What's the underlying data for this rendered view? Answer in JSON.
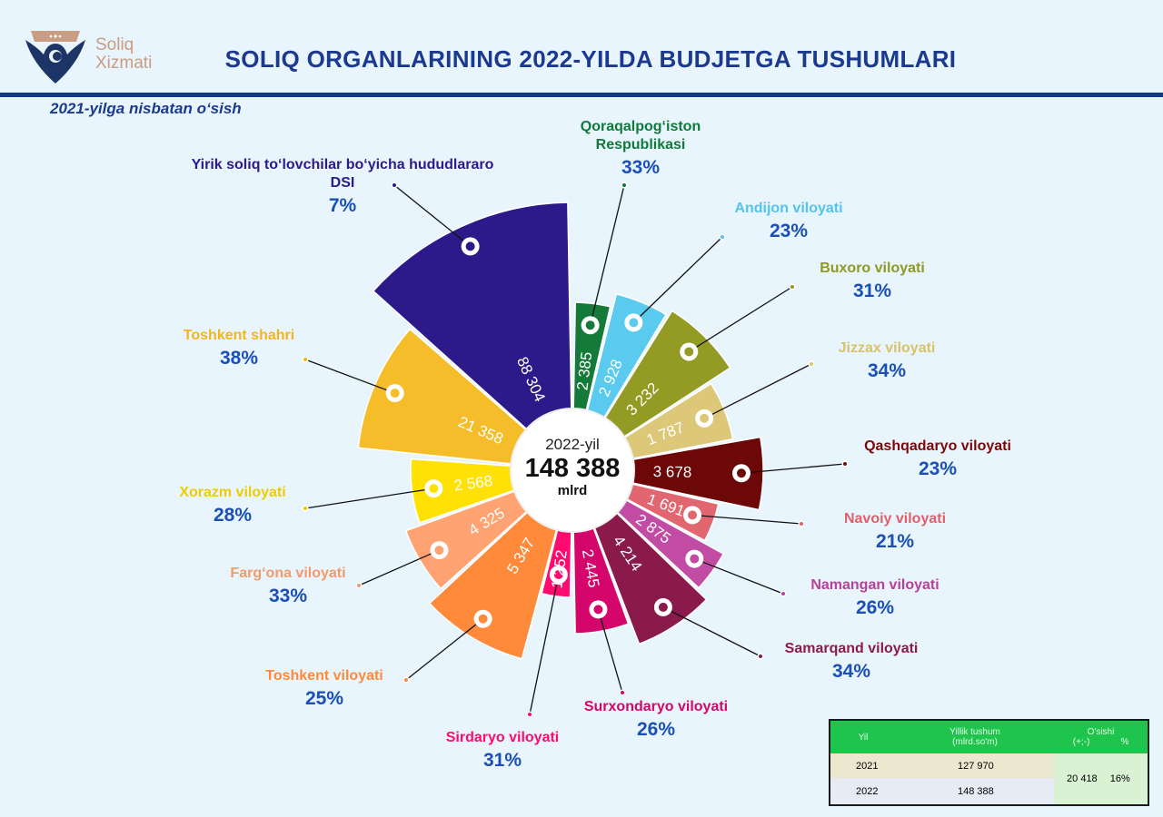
{
  "header": {
    "brand_line1": "Soliq",
    "brand_line2": "Xizmati",
    "title": "SOLIQ ORGANLARINING 2022-YILDA BUDJETGA TUSHUMLARI",
    "subtitle": "2021-yilga nisbatan o‘sish"
  },
  "center": {
    "year": "2022-yil",
    "total": "148 388",
    "unit": "mlrd"
  },
  "chart_data": {
    "type": "radial-bar",
    "title": "SOLIQ ORGANLARINING 2022-YILDA BUDJETGA TUSHUMLARI",
    "unit": "mlrd so'm",
    "regions": [
      {
        "name": "Qoraqalpog‘iston",
        "name2": "Respublikasi",
        "value": 2385,
        "value_label": "2 385",
        "growth": "33%",
        "color": "#15793a",
        "label_color": "#0e7a3a"
      },
      {
        "name": "Andijon viloyati",
        "value": 2928,
        "value_label": "2 928",
        "growth": "23%",
        "color": "#5bcaef",
        "label_color": "#52c4ec"
      },
      {
        "name": "Buxoro viloyati",
        "value": 3232,
        "value_label": "3 232",
        "growth": "31%",
        "color": "#949b24",
        "label_color": "#8e9a20"
      },
      {
        "name": "Jizzax viloyati",
        "value": 1787,
        "value_label": "1 787",
        "growth": "34%",
        "color": "#ddc87a",
        "label_color": "#d8c26a"
      },
      {
        "name": "Qashqadaryo viloyati",
        "value": 3678,
        "value_label": "3 678",
        "growth": "23%",
        "color": "#6c0808",
        "label_color": "#7a0a0a"
      },
      {
        "name": "Navoiy viloyati",
        "value": 1691,
        "value_label": "1 691",
        "growth": "21%",
        "color": "#e2666f",
        "label_color": "#e0606a"
      },
      {
        "name": "Namangan viloyati",
        "value": 2875,
        "value_label": "2 875",
        "growth": "26%",
        "color": "#c24ca4",
        "label_color": "#b8409c"
      },
      {
        "name": "Samarqand viloyati",
        "value": 4214,
        "value_label": "4 214",
        "growth": "34%",
        "color": "#8b1a4c",
        "label_color": "#8d1a4c"
      },
      {
        "name": "Surxondaryo viloyati",
        "value": 2445,
        "value_label": "2 445",
        "growth": "26%",
        "color": "#d4066b",
        "label_color": "#d5056a"
      },
      {
        "name": "Sirdaryo viloyati",
        "value": 1252,
        "value_label": "1 252",
        "growth": "31%",
        "color": "#ff0b6f",
        "label_color": "#ff0a6e"
      },
      {
        "name": "Toshkent viloyati",
        "value": 5347,
        "value_label": "5 347",
        "growth": "25%",
        "color": "#ff8a3a",
        "label_color": "#ff8a3a"
      },
      {
        "name": "Farg‘ona viloyati",
        "value": 4325,
        "value_label": "4 325",
        "growth": "33%",
        "color": "#ffa373",
        "label_color": "#f39a6a"
      },
      {
        "name": "Xorazm viloyati",
        "value": 2568,
        "value_label": "2 568",
        "growth": "28%",
        "color": "#ffe203",
        "label_color": "#eccd00"
      },
      {
        "name": "Toshkent shahri",
        "value": 21358,
        "value_label": "21 358",
        "growth": "38%",
        "color": "#f6bd2a",
        "label_color": "#f2b61c"
      },
      {
        "name": "Yirik soliq to‘lovchilar bo‘yicha hududlararo DSI",
        "value": 88304,
        "value_label": "88 304",
        "growth": "7%",
        "color": "#2c1a8a",
        "label_color": "#2c1a8a"
      }
    ]
  },
  "summary_table": {
    "headers": {
      "year": "Yil",
      "income": "Yillik tushum",
      "income_unit": "(mlrd.so'm)",
      "growth": "O'sishi",
      "growth_abs": "(+;-)",
      "growth_pct": "%"
    },
    "rows": [
      {
        "year": "2021",
        "income": "127 970"
      },
      {
        "year": "2022",
        "income": "148 388"
      }
    ],
    "growth_abs": "20 418",
    "growth_pct": "16%"
  }
}
